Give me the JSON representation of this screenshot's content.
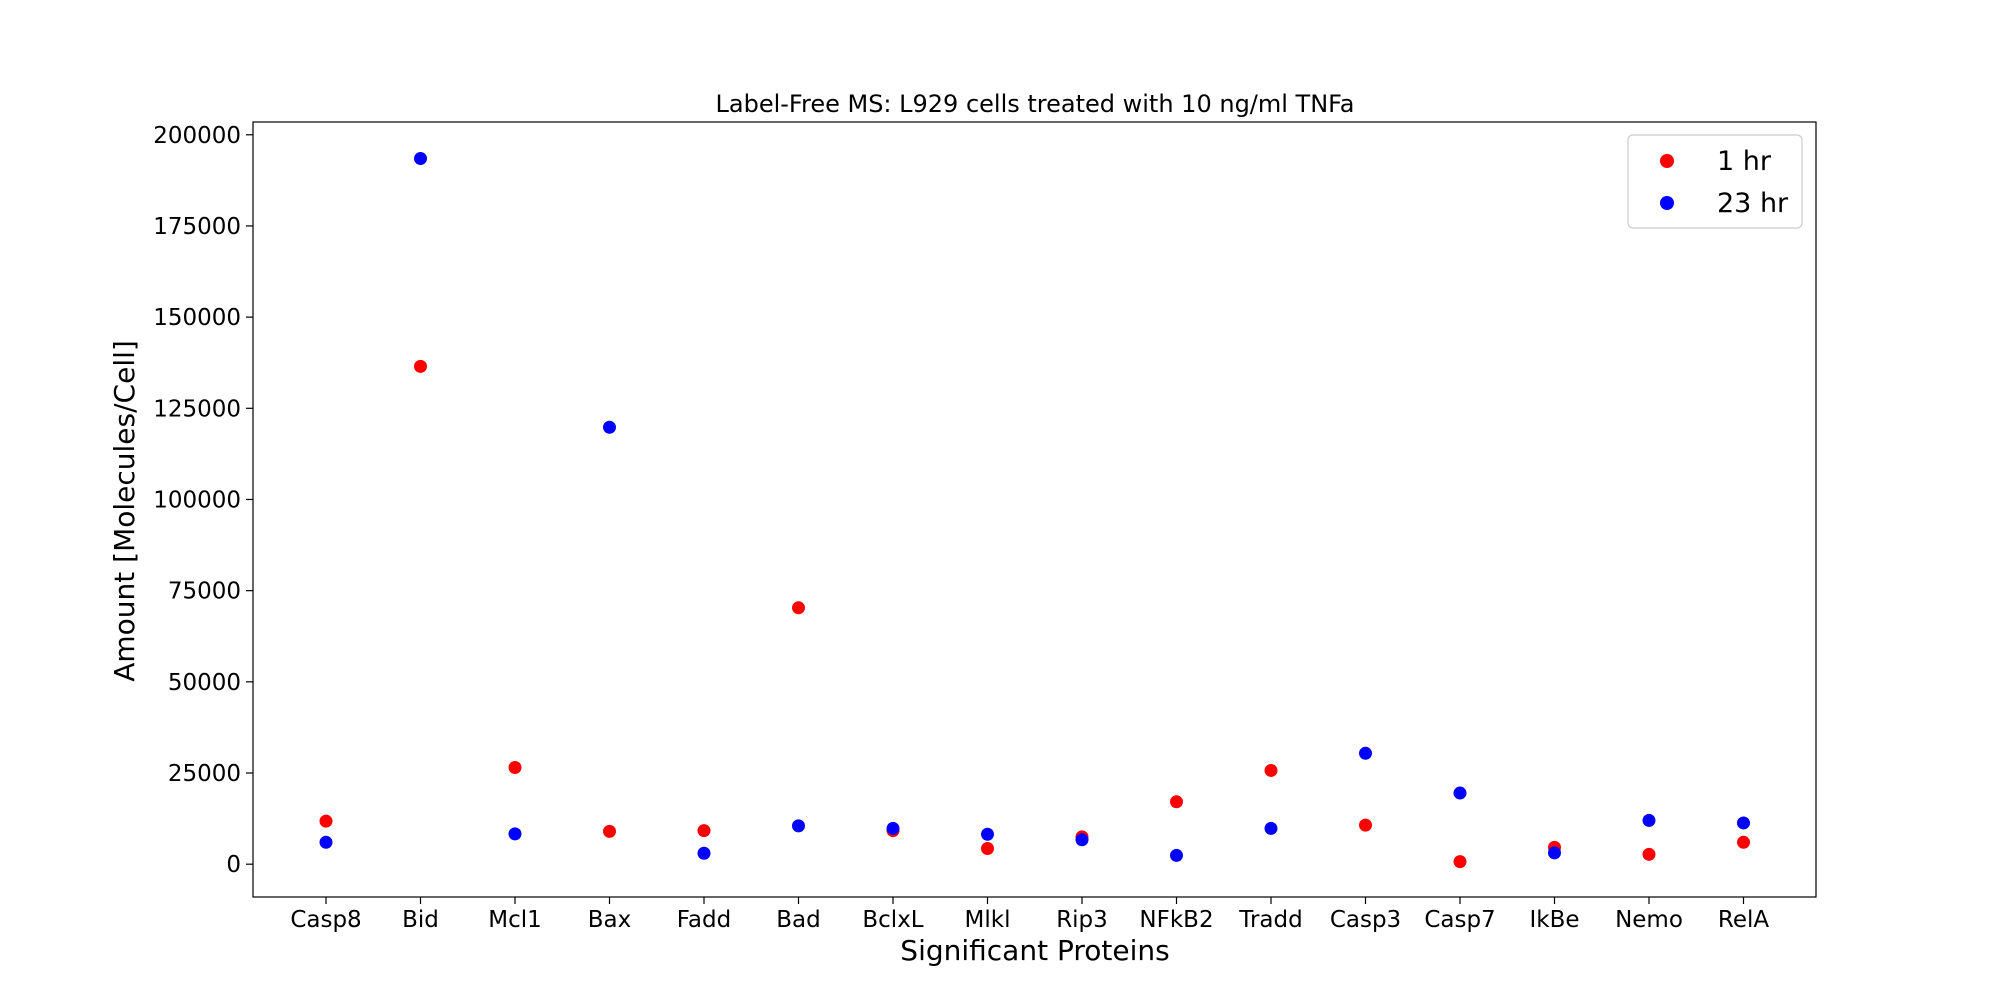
{
  "chart_data": {
    "type": "scatter",
    "title": "Label-Free MS: L929 cells treated with 10 ng/ml TNFa",
    "xlabel": "Significant Proteins",
    "ylabel": "Amount [Molecules/Cell]",
    "categories": [
      "Casp8",
      "Bid",
      "Mcl1",
      "Bax",
      "Fadd",
      "Bad",
      "BclxL",
      "Mlkl",
      "Rip3",
      "NFkB2",
      "Tradd",
      "Casp3",
      "Casp7",
      "IkBe",
      "Nemo",
      "RelA"
    ],
    "yticks": [
      0,
      25000,
      50000,
      75000,
      100000,
      125000,
      150000,
      175000,
      200000
    ],
    "ylim": [
      -9000,
      203500
    ],
    "grid": false,
    "legend_position": "top-right",
    "series": [
      {
        "name": "1 hr",
        "color": "#ff0000",
        "values": [
          11800,
          136500,
          26500,
          9000,
          9200,
          70300,
          9200,
          4300,
          7500,
          17100,
          25700,
          10700,
          700,
          4600,
          2700,
          6000
        ]
      },
      {
        "name": "23 hr",
        "color": "#0000ff",
        "values": [
          6000,
          193500,
          8300,
          119800,
          3000,
          10500,
          9800,
          8200,
          6700,
          2400,
          9800,
          30400,
          19500,
          3100,
          12000,
          11300
        ]
      }
    ]
  }
}
